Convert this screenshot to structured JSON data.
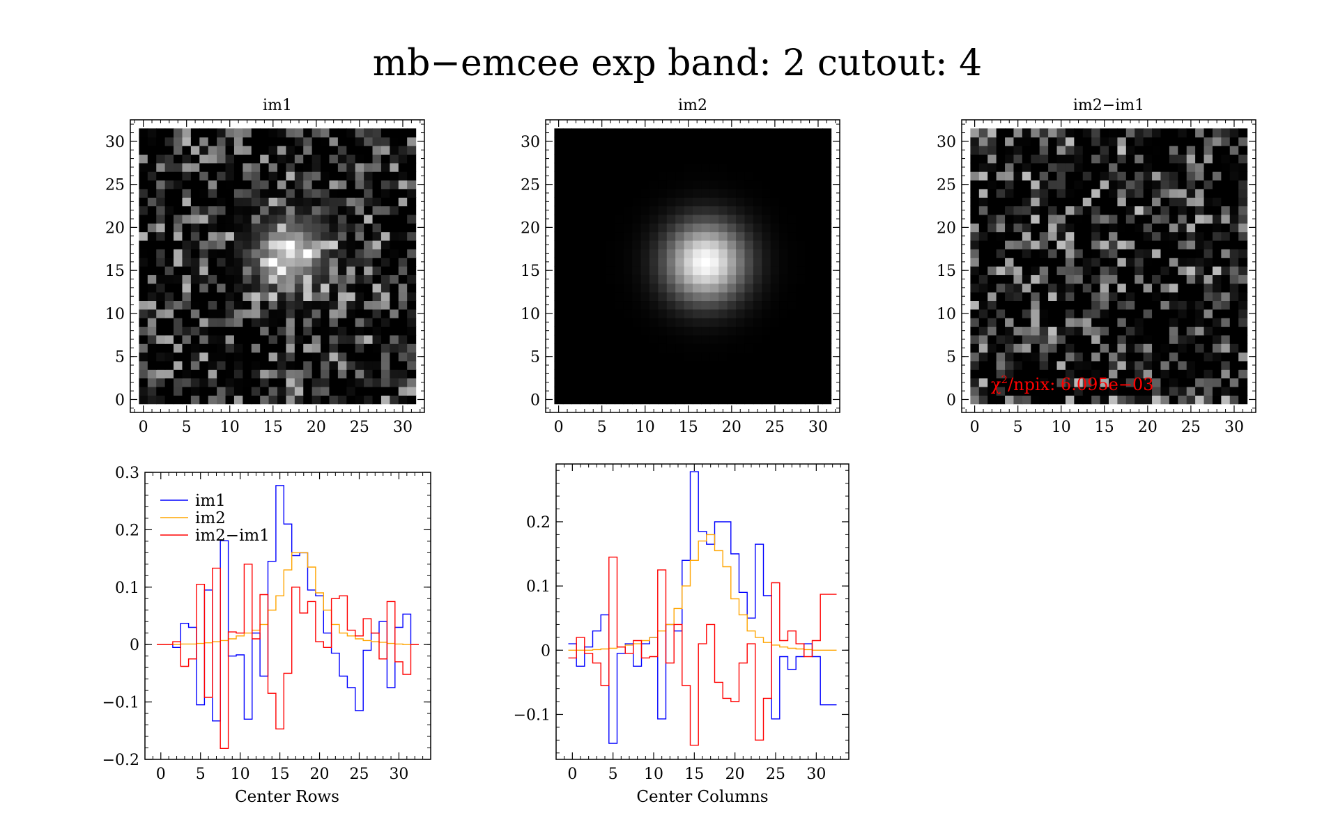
{
  "figure": {
    "title": "mb−emcee exp band: 2 cutout: 4"
  },
  "chart_data": [
    {
      "type": "heatmap",
      "title": "im1",
      "xlim": [
        -1.5,
        32.5
      ],
      "ylim": [
        -1.5,
        32.5
      ],
      "xticks": [
        "0",
        "5",
        "10",
        "15",
        "20",
        "25",
        "30"
      ],
      "yticks": [
        "0",
        "5",
        "10",
        "15",
        "20",
        "25",
        "30"
      ],
      "description_values": "32x32 noisy cutout; source peak near (16,18)",
      "peak": {
        "x": 17,
        "y": 17,
        "value": 1.0
      }
    },
    {
      "type": "heatmap",
      "title": "im2",
      "xlim": [
        -1.5,
        32.5
      ],
      "ylim": [
        -1.5,
        32.5
      ],
      "xticks": [
        "0",
        "5",
        "10",
        "15",
        "20",
        "25",
        "30"
      ],
      "yticks": [
        "0",
        "5",
        "10",
        "15",
        "20",
        "25",
        "30"
      ],
      "peak": {
        "x": 17,
        "y": 16,
        "value": 1.0
      }
    },
    {
      "type": "heatmap",
      "title": "im2−im1",
      "xlim": [
        -1.5,
        32.5
      ],
      "ylim": [
        -1.5,
        32.5
      ],
      "xticks": [
        "0",
        "5",
        "10",
        "15",
        "20",
        "25",
        "30"
      ],
      "yticks": [
        "0",
        "5",
        "10",
        "15",
        "20",
        "25",
        "30"
      ],
      "annotation": {
        "chi_symbol": "χ",
        "chi_sup": "2",
        "chi_text": "/npix: 6.095e−03"
      }
    },
    {
      "type": "line",
      "step": true,
      "xlabel": "Center Rows",
      "xlim": [
        -2,
        34
      ],
      "ylim": [
        -0.2,
        0.3
      ],
      "xticks": [
        "0",
        "5",
        "10",
        "15",
        "20",
        "25",
        "30"
      ],
      "yticks": [
        "−0.2",
        "−0.1",
        "0",
        "0.1",
        "0.2",
        "0.3"
      ],
      "x": [
        0,
        1,
        2,
        3,
        4,
        5,
        6,
        7,
        8,
        9,
        10,
        11,
        12,
        13,
        14,
        15,
        16,
        17,
        18,
        19,
        20,
        21,
        22,
        23,
        24,
        25,
        26,
        27,
        28,
        29,
        30,
        31,
        32
      ],
      "legend": {
        "position": "top-left",
        "entries": [
          "im1",
          "im2",
          "im2−im1"
        ]
      },
      "series": [
        {
          "name": "im1",
          "color": "#0000ff",
          "values": [
            0.0,
            0.0,
            -0.005,
            0.037,
            0.03,
            -0.105,
            0.095,
            -0.133,
            0.181,
            -0.02,
            -0.018,
            -0.13,
            0.02,
            -0.055,
            0.145,
            0.277,
            0.21,
            0.155,
            0.16,
            0.095,
            0.085,
            0.02,
            -0.015,
            -0.055,
            -0.075,
            -0.115,
            -0.01,
            0.02,
            0.04,
            -0.075,
            0.03,
            0.053,
            0.0
          ]
        },
        {
          "name": "im2",
          "color": "#ffa500",
          "values": [
            0.0,
            0.0,
            0.0,
            0.001,
            0.001,
            0.002,
            0.003,
            0.005,
            0.007,
            0.01,
            0.015,
            0.02,
            0.025,
            0.035,
            0.06,
            0.085,
            0.13,
            0.16,
            0.16,
            0.135,
            0.09,
            0.06,
            0.035,
            0.02,
            0.015,
            0.01,
            0.007,
            0.005,
            0.004,
            0.002,
            0.001,
            0.0,
            0.0
          ]
        },
        {
          "name": "im2−im1",
          "color": "#ff0000",
          "values": [
            0.0,
            0.0,
            0.005,
            -0.038,
            -0.025,
            0.105,
            -0.092,
            0.133,
            -0.181,
            0.022,
            0.02,
            0.14,
            0.01,
            0.087,
            -0.085,
            -0.147,
            -0.05,
            0.1,
            0.055,
            0.075,
            0.005,
            -0.005,
            0.08,
            0.085,
            0.025,
            0.015,
            0.045,
            0.02,
            -0.025,
            0.075,
            -0.03,
            -0.052,
            0.0
          ]
        }
      ]
    },
    {
      "type": "line",
      "step": true,
      "xlabel": "Center Columns",
      "xlim": [
        -2,
        34
      ],
      "ylim": [
        -0.17,
        0.29
      ],
      "xticks": [
        "0",
        "5",
        "10",
        "15",
        "20",
        "25",
        "30"
      ],
      "yticks": [
        "−0.1",
        "0",
        "0.1",
        "0.2"
      ],
      "x": [
        0,
        1,
        2,
        3,
        4,
        5,
        6,
        7,
        8,
        9,
        10,
        11,
        12,
        13,
        14,
        15,
        16,
        17,
        18,
        19,
        20,
        21,
        22,
        23,
        24,
        25,
        26,
        27,
        28,
        29,
        30,
        31,
        32
      ],
      "series": [
        {
          "name": "im1",
          "color": "#0000ff",
          "values": [
            0.01,
            -0.025,
            0.005,
            0.03,
            0.055,
            -0.145,
            -0.005,
            0.01,
            -0.025,
            0.01,
            0.02,
            -0.107,
            0.04,
            0.03,
            0.14,
            0.278,
            0.185,
            0.165,
            0.2,
            0.2,
            0.15,
            0.09,
            0.05,
            0.165,
            0.085,
            -0.107,
            -0.01,
            -0.03,
            -0.01,
            0.01,
            -0.01,
            -0.085,
            -0.085
          ]
        },
        {
          "name": "im2",
          "color": "#ffa500",
          "values": [
            0.0,
            0.0,
            0.0,
            0.001,
            0.002,
            0.003,
            0.005,
            0.008,
            0.01,
            0.015,
            0.02,
            0.03,
            0.04,
            0.065,
            0.1,
            0.14,
            0.17,
            0.18,
            0.155,
            0.13,
            0.08,
            0.055,
            0.03,
            0.02,
            0.012,
            0.008,
            0.005,
            0.003,
            0.002,
            0.001,
            0.0,
            0.0,
            0.0
          ]
        },
        {
          "name": "im2−im1",
          "color": "#ff0000",
          "values": [
            -0.012,
            0.02,
            -0.005,
            -0.02,
            -0.055,
            0.145,
            0.005,
            -0.005,
            0.015,
            -0.012,
            -0.01,
            0.125,
            -0.02,
            0.04,
            -0.055,
            -0.148,
            0.01,
            0.04,
            -0.05,
            -0.075,
            -0.08,
            -0.02,
            0.01,
            -0.14,
            -0.075,
            0.105,
            0.015,
            0.03,
            0.01,
            -0.01,
            0.015,
            0.087,
            0.087
          ]
        }
      ]
    }
  ]
}
